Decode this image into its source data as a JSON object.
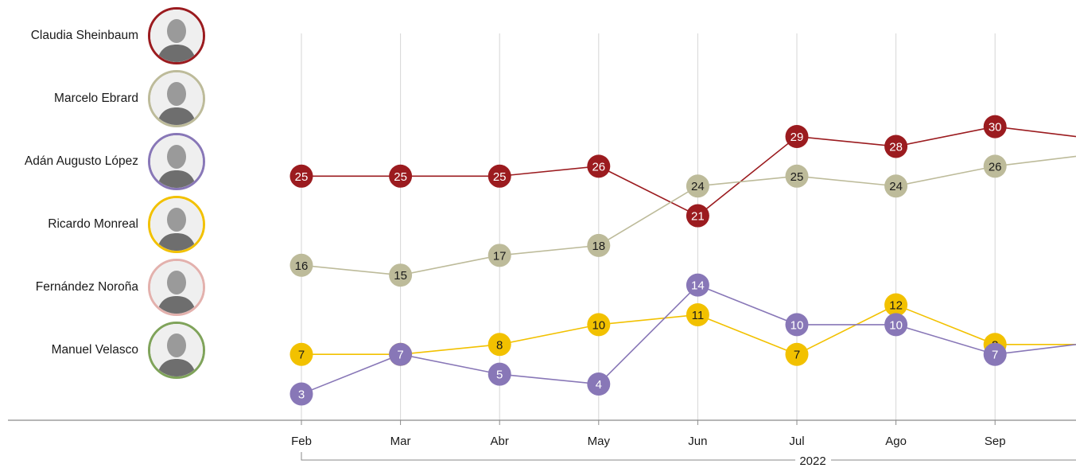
{
  "legend": [
    {
      "name": "Claudia Sheinbaum",
      "color": "#9b1b1f"
    },
    {
      "name": "Marcelo Ebrard",
      "color": "#bdbb9a"
    },
    {
      "name": "Adán Augusto López",
      "color": "#8877b7"
    },
    {
      "name": "Ricardo Monreal",
      "color": "#f2c100"
    },
    {
      "name": "Fernández Noroña",
      "color": "#e3b1ad"
    },
    {
      "name": "Manuel Velasco",
      "color": "#7fa35a"
    }
  ],
  "chart_data": {
    "type": "line",
    "categories": [
      "Feb",
      "Mar",
      "Abr",
      "May",
      "Jun",
      "Jul",
      "Ago",
      "Sep"
    ],
    "year_label": "2022",
    "series": [
      {
        "name": "Claudia Sheinbaum",
        "color": "#9b1b1f",
        "label_color": "#ffffff",
        "values": [
          25,
          25,
          25,
          26,
          21,
          29,
          28,
          30
        ],
        "trailing_value": 29
      },
      {
        "name": "Marcelo Ebrard",
        "color": "#bdbb9a",
        "label_color": "#1a1a1a",
        "values": [
          16,
          15,
          17,
          18,
          24,
          25,
          24,
          26
        ],
        "trailing_value": 27
      },
      {
        "name": "Ricardo Monreal",
        "color": "#f2c100",
        "label_color": "#1a1a1a",
        "values": [
          7,
          7,
          8,
          10,
          11,
          7,
          12,
          8
        ],
        "trailing_value": 8
      },
      {
        "name": "Adán Augusto López",
        "color": "#8877b7",
        "label_color": "#ffffff",
        "values": [
          3,
          7,
          5,
          4,
          14,
          10,
          10,
          7
        ],
        "trailing_value": 8
      }
    ],
    "grid": "vertical",
    "ylim": [
      0,
      35
    ]
  }
}
